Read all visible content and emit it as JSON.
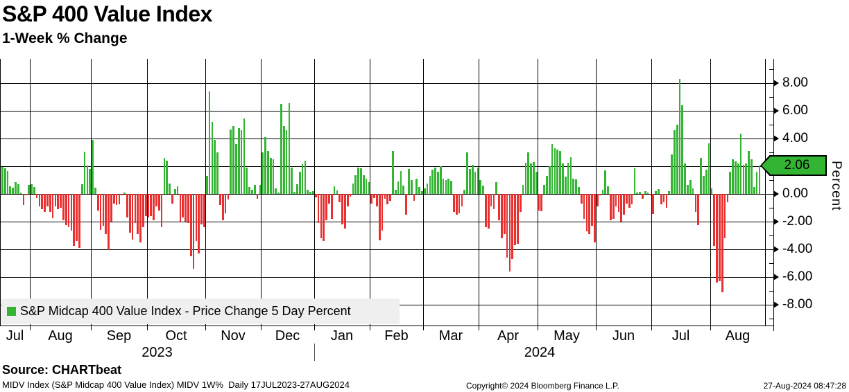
{
  "header": {
    "title": "S&P 400 Value Index",
    "subtitle": "1-Week % Change"
  },
  "legend": {
    "swatch_color": "#33B533",
    "label": "S&P Midcap 400 Value Index - Price Change 5 Day Percent"
  },
  "y_axis": {
    "label": "Percent",
    "badge": {
      "text": "2.06",
      "color": "#33B533"
    }
  },
  "footer": {
    "source": "Source: CHARTbeat",
    "meta": "MIDV Index (S&P Midcap 400 Value Index) MIDV 1W%  Daily 17JUL2023-27AUG2024",
    "copyright": "Copyright© 2024 Bloomberg Finance L.P.",
    "timestamp": "27-Aug-2024 08:47:28"
  },
  "chart_data": {
    "type": "bar",
    "title": "S&P 400 Value Index",
    "subtitle": "1-Week % Change",
    "ylabel": "Percent",
    "ylim": [
      -9.5,
      9.75
    ],
    "y_major_ticks": [
      8,
      6,
      4,
      2,
      0,
      -2,
      -4,
      -6,
      -8
    ],
    "y_major_tick_labels": [
      "8.00",
      "6.00",
      "4.00",
      "2.00",
      "0.00",
      "-2.00",
      "-4.00",
      "-6.00",
      "-8.00"
    ],
    "y_minor_ticks": [
      9,
      7,
      5,
      3,
      1,
      -1,
      -3,
      -5,
      -7,
      -9
    ],
    "grid": "both",
    "legend_position": "bottom-left",
    "last_value": 2.06,
    "positive_color": "#33B533",
    "negative_color": "#E93030",
    "x_axis_years": [
      {
        "label": "2023",
        "month_span": [
          0,
          5
        ]
      },
      {
        "label": "2024",
        "month_span": [
          6,
          13
        ]
      }
    ],
    "series": [
      {
        "name": "S&P Midcap 400 Value Index - Price Change 5 Day Percent",
        "months": [
          {
            "month": "Jul",
            "year": "2023",
            "values": [
              1.95,
              1.85,
              1.65,
              0.55,
              0.45,
              0.85,
              0.7,
              0.1,
              -0.8,
              -0.1,
              0.65
            ]
          },
          {
            "month": "Aug",
            "year": "2023",
            "values": [
              0.7,
              0.5,
              -0.3,
              -0.9,
              -1.1,
              -1.3,
              -0.9,
              -1.3,
              -1.75,
              -0.9,
              -1.1,
              -1.0,
              -1.9,
              -2.25,
              -2.4,
              -2.65,
              -3.75,
              -3.4,
              -3.9,
              0.7,
              3.05,
              2.05,
              1.8
            ]
          },
          {
            "month": "Sep",
            "year": "2023",
            "values": [
              3.9,
              0.45,
              -1.2,
              -2.6,
              -2.3,
              -2.9,
              -4.05,
              -2.0,
              -0.7,
              -0.8,
              -0.75,
              -0.1,
              0.1,
              -1.7,
              -2.8,
              -3.3,
              -2.1,
              -2.9,
              -3.5,
              -2.4,
              -1.6
            ]
          },
          {
            "month": "Oct",
            "year": "2023",
            "values": [
              -1.7,
              -1.6,
              -1.9,
              -0.9,
              -1.2,
              -2.4,
              2.6,
              2.4,
              0.75,
              -0.7,
              0.35,
              0.55,
              -2.0,
              -1.7,
              -2.0,
              -2.1,
              -4.5,
              -5.4,
              -3.4,
              -4.3,
              -2.2,
              -2.4
            ]
          },
          {
            "month": "Nov",
            "year": "2023",
            "values": [
              1.3,
              7.4,
              5.2,
              3.9,
              3.0,
              -0.8,
              -1.9,
              -1.4,
              -0.4,
              4.65,
              4.9,
              3.6,
              4.75,
              4.6,
              5.45,
              1.9,
              0.5,
              0.3,
              0.65,
              -0.35,
              0.65
            ]
          },
          {
            "month": "Dec",
            "year": "2023",
            "values": [
              3.0,
              4.1,
              3.1,
              2.6,
              2.5,
              0.4,
              0.1,
              6.5,
              4.9,
              4.6,
              6.55,
              1.9,
              0.15,
              0.7,
              1.6,
              2.15,
              2.4,
              0.3,
              0.15,
              0.2
            ]
          },
          {
            "month": "Jan",
            "year": "2024",
            "values": [
              -0.25,
              -2.1,
              -3.2,
              -3.4,
              -1.9,
              -0.7,
              -1.8,
              0.55,
              0.25,
              -0.6,
              -2.2,
              -2.5,
              -0.9,
              -0.2,
              0.75,
              1.35,
              1.9,
              1.85,
              1.35,
              1.1,
              0.85
            ]
          },
          {
            "month": "Feb",
            "year": "2024",
            "values": [
              -0.7,
              -0.3,
              -0.9,
              -3.35,
              -2.65,
              -0.35,
              -0.75,
              -0.5,
              3.1,
              0.3,
              0.9,
              1.65,
              0.6,
              -1.5,
              1.8,
              1.0,
              -0.5,
              1.1,
              0.5,
              0.2
            ]
          },
          {
            "month": "Mar",
            "year": "2024",
            "values": [
              0.4,
              0.75,
              1.3,
              1.75,
              1.9,
              1.6,
              2.0,
              1.1,
              1.0,
              1.1,
              0.95,
              -1.3,
              -1.5,
              -1.4,
              -0.9,
              0.3,
              3.0,
              1.8,
              2.1,
              1.6,
              1.9
            ]
          },
          {
            "month": "Apr",
            "year": "2024",
            "values": [
              1.0,
              0.6,
              -2.4,
              -2.5,
              -0.9,
              -1.1,
              0.85,
              -1.9,
              -3.2,
              -2.9,
              -4.6,
              -5.6,
              -4.7,
              -3.7,
              -3.6,
              -1.3,
              0.65,
              2.25,
              3.0,
              2.2,
              2.3,
              1.6
            ]
          },
          {
            "month": "May",
            "year": "2024",
            "values": [
              -1.2,
              -1.25,
              0.65,
              1.3,
              2.0,
              3.6,
              3.3,
              3.2,
              3.1,
              2.2,
              1.25,
              2.25,
              2.65,
              1.1,
              1.05,
              0.5,
              -0.7,
              -1.8,
              -2.7,
              -2.9,
              -2.3,
              -3.5
            ]
          },
          {
            "month": "Jun",
            "year": "2024",
            "values": [
              -0.9,
              -0.1,
              0.3,
              1.7,
              0.55,
              -1.9,
              -1.8,
              -0.9,
              -1.3,
              -2.0,
              -1.5,
              -0.7,
              -1.0,
              -0.75,
              1.85,
              0.1,
              0.15,
              -0.35,
              0.2,
              0.1,
              -0.1
            ]
          },
          {
            "month": "Jul",
            "year": "2024",
            "values": [
              -1.45,
              0.2,
              0.35,
              -0.75,
              -0.6,
              -1.0,
              0.2,
              2.85,
              4.6,
              5.0,
              8.3,
              6.4,
              2.2,
              0.65,
              1.0,
              0.4,
              -1.3,
              -2.25,
              2.6,
              1.3,
              1.75,
              3.65
            ]
          },
          {
            "month": "Aug",
            "year": "2024",
            "values": [
              0.4,
              -3.75,
              -6.4,
              -6.3,
              -7.1,
              -3.2,
              -0.6,
              1.6,
              2.5,
              2.35,
              2.2,
              4.35,
              2.1,
              2.2,
              3.1,
              2.5,
              0.5,
              1.6,
              2.06
            ]
          }
        ]
      }
    ]
  }
}
